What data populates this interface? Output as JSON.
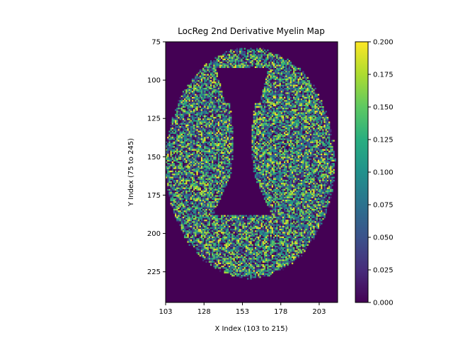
{
  "chart_data": {
    "type": "heatmap",
    "title": "LocReg 2nd Derivative Myelin Map",
    "xlabel": "X Index (103 to 215)",
    "ylabel": "Y Index (75 to 245)",
    "xlim": [
      103,
      215
    ],
    "ylim": [
      245,
      75
    ],
    "x_ticks": [
      "103",
      "128",
      "153",
      "178",
      "203"
    ],
    "y_ticks": [
      "75",
      "100",
      "125",
      "150",
      "175",
      "200",
      "225"
    ],
    "colormap": "viridis",
    "colorbar": {
      "range": [
        0.0,
        0.2
      ],
      "ticks": [
        "0.000",
        "0.025",
        "0.050",
        "0.075",
        "0.100",
        "0.125",
        "0.150",
        "0.175",
        "0.200"
      ]
    },
    "background_value": 0.0,
    "data_description": "Noisy myelin fraction values (0 to 0.2) inside an elliptical brain mask centered near x=158, y=154; central ventricle region near x=140-170, y=92-187 is zero."
  }
}
